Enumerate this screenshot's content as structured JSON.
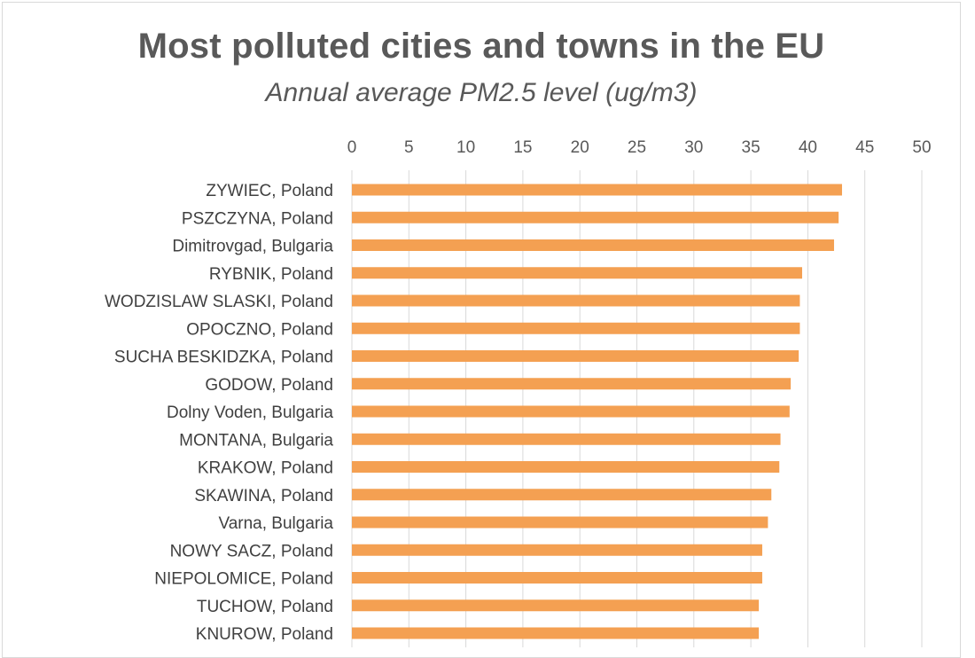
{
  "chart_data": {
    "type": "bar",
    "orientation": "horizontal",
    "title": "Most polluted cities and towns in the EU",
    "subtitle": "Annual average PM2.5 level (ug/m3)",
    "xlim": [
      0,
      50
    ],
    "x_ticks": [
      0,
      5,
      10,
      15,
      20,
      25,
      30,
      35,
      40,
      45,
      50
    ],
    "x_axis_position": "top",
    "grid": true,
    "bar_color": "#F4A052",
    "categories": [
      "ZYWIEC, Poland",
      "PSZCZYNA, Poland",
      "Dimitrovgad, Bulgaria",
      "RYBNIK, Poland",
      "WODZISLAW SLASKI, Poland",
      "OPOCZNO, Poland",
      "SUCHA BESKIDZKA, Poland",
      "GODOW, Poland",
      "Dolny Voden, Bulgaria",
      "MONTANA, Bulgaria",
      "KRAKOW, Poland",
      "SKAWINA, Poland",
      "Varna, Bulgaria",
      "NOWY SACZ, Poland",
      "NIEPOLOMICE, Poland",
      "TUCHOW, Poland",
      "KNUROW, Poland"
    ],
    "values": [
      43,
      42.7,
      42.3,
      39.5,
      39.3,
      39.3,
      39.2,
      38.5,
      38.4,
      37.6,
      37.5,
      36.8,
      36.5,
      36,
      36,
      35.7,
      35.7
    ]
  }
}
